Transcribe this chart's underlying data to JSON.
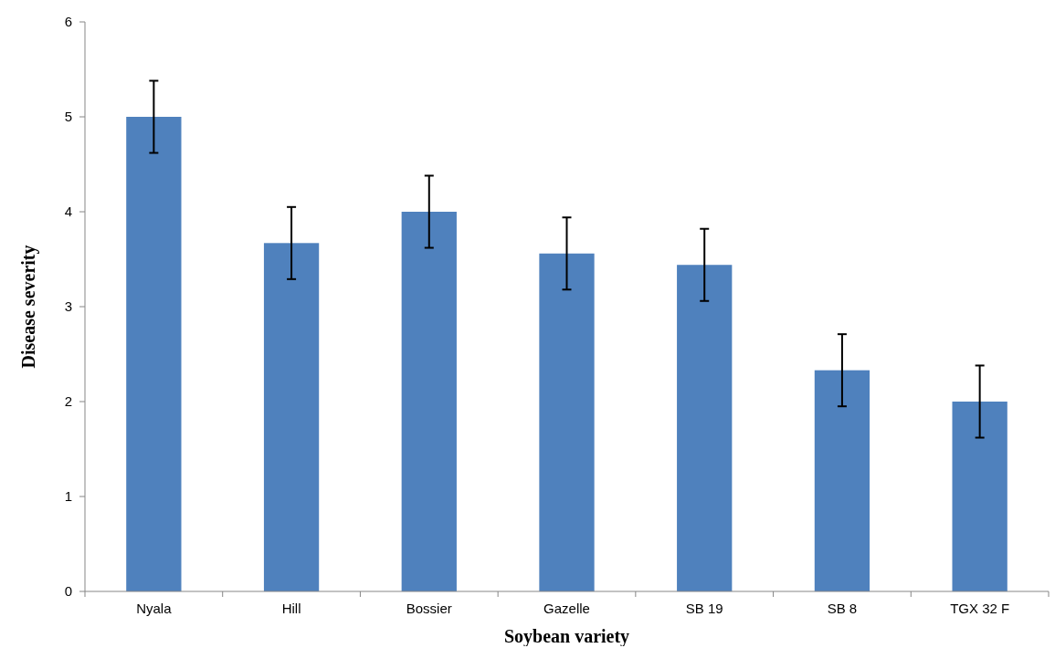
{
  "chart_data": {
    "type": "bar",
    "xlabel": "Soybean variety",
    "ylabel": "Disease severity",
    "categories": [
      "Nyala",
      "Hill",
      "Bossier",
      "Gazelle",
      "SB 19",
      "SB 8",
      "TGX 32 F"
    ],
    "values": [
      5,
      3.67,
      4,
      3.56,
      3.44,
      2.33,
      2
    ],
    "errors": [
      0.38,
      0.38,
      0.38,
      0.38,
      0.38,
      0.38,
      0.38
    ],
    "color": "#4f81bd",
    "ylim": [
      0,
      6
    ],
    "yticks": [
      0,
      1,
      2,
      3,
      4,
      5,
      6
    ]
  }
}
